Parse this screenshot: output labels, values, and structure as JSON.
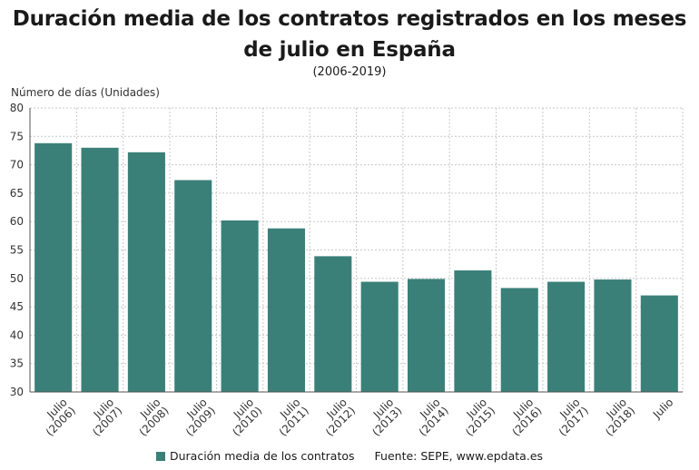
{
  "chart_data": {
    "type": "bar",
    "title": "Duración media de los contratos registrados en los meses de julio en España",
    "subtitle": "(2006-2019)",
    "ylabel": "Número de días (Unidades)",
    "xlabel": "",
    "ylim": [
      30,
      80
    ],
    "yticks": [
      30,
      35,
      40,
      45,
      50,
      55,
      60,
      65,
      70,
      75,
      80
    ],
    "grid": true,
    "legend_position": "bottom",
    "categories": [
      "Julio (2006)",
      "Julio (2007)",
      "Julio (2008)",
      "Julio (2009)",
      "Julio (2010)",
      "Julio (2011)",
      "Julio (2012)",
      "Julio (2013)",
      "Julio (2014)",
      "Julio (2015)",
      "Julio (2016)",
      "Julio (2017)",
      "Julio (2018)",
      "Julio"
    ],
    "tick_labels": [
      [
        "Julio",
        "(2006)"
      ],
      [
        "Julio",
        "(2007)"
      ],
      [
        "Julio",
        "(2008)"
      ],
      [
        "Julio",
        "(2009)"
      ],
      [
        "Julio",
        "(2010)"
      ],
      [
        "Julio",
        "(2011)"
      ],
      [
        "Julio",
        "(2012)"
      ],
      [
        "Julio",
        "(2013)"
      ],
      [
        "Julio",
        "(2014)"
      ],
      [
        "Julio",
        "(2015)"
      ],
      [
        "Julio",
        "(2016)"
      ],
      [
        "Julio",
        "(2017)"
      ],
      [
        "Julio",
        "(2018)"
      ],
      [
        "Julio"
      ]
    ],
    "series": [
      {
        "name": "Duración media de los contratos",
        "color": "#3a8079",
        "values": [
          73.8,
          73.0,
          72.2,
          67.3,
          60.2,
          58.8,
          53.9,
          49.4,
          49.9,
          51.4,
          48.3,
          49.4,
          49.8,
          47.0
        ]
      }
    ]
  },
  "source": "Fuente: SEPE, www.epdata.es"
}
